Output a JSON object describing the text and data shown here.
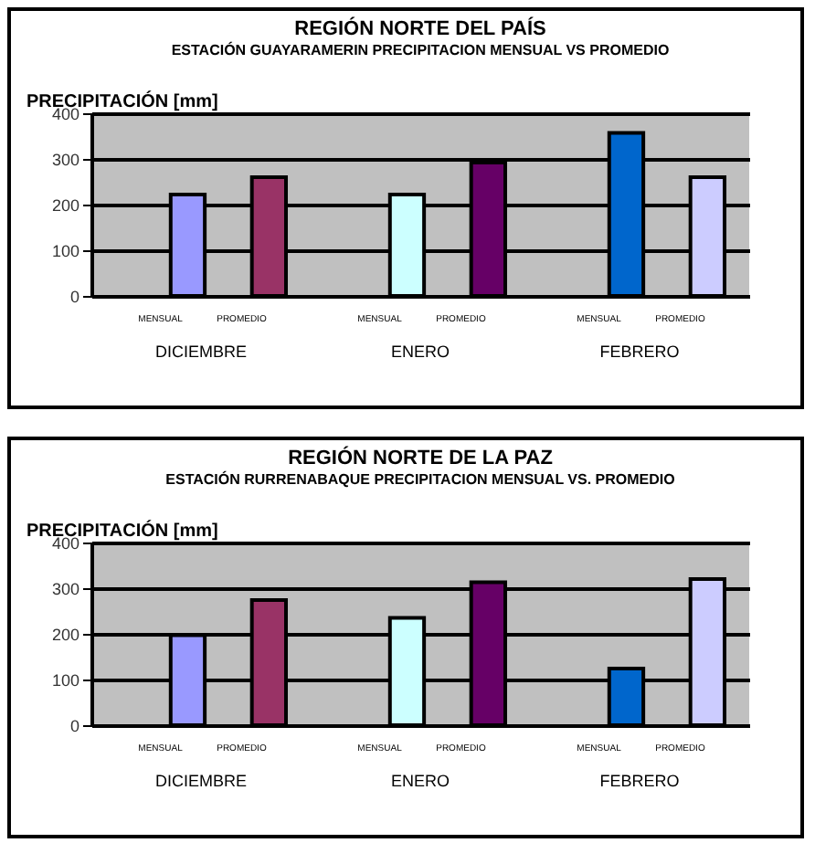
{
  "chart_data": [
    {
      "type": "bar",
      "title": "REGIÓN NORTE DEL PAÍS",
      "subtitle": "ESTACIÓN GUAYARAMERIN\nPRECIPITACION MENSUAL VS PROMEDIO",
      "ylabel": "PRECIPITACIÓN [mm]",
      "categories": [
        "MENSUAL",
        "PROMEDIO",
        "MENSUAL",
        "PROMEDIO",
        "MENSUAL",
        "PROMEDIO"
      ],
      "values": [
        222,
        260,
        222,
        292,
        357,
        260
      ],
      "colors": [
        "#9999ff",
        "#993366",
        "#ccffff",
        "#660066",
        "#0066cc",
        "#ccccff"
      ],
      "annotations": [
        "DICIEMBRE",
        "ENERO",
        "FEBRERO"
      ],
      "ylim": [
        0,
        400
      ],
      "yticks": [
        0,
        100,
        200,
        300,
        400
      ],
      "grid": "y"
    },
    {
      "type": "bar",
      "title": "REGIÓN NORTE DE LA PAZ",
      "subtitle": "ESTACIÓN RURRENABAQUE\nPRECIPITACION MENSUAL VS. PROMEDIO",
      "ylabel": "PRECIPITACIÓN [mm]",
      "categories": [
        "MENSUAL",
        "PROMEDIO",
        "MENSUAL",
        "PROMEDIO",
        "MENSUAL",
        "PROMEDIO"
      ],
      "values": [
        197,
        274,
        235,
        313,
        124,
        320
      ],
      "colors": [
        "#9999ff",
        "#993366",
        "#ccffff",
        "#660066",
        "#0066cc",
        "#ccccff"
      ],
      "annotations": [
        "DICIEMBRE",
        "ENERO",
        "FEBRERO"
      ],
      "ylim": [
        0,
        400
      ],
      "yticks": [
        0,
        100,
        200,
        300,
        400
      ],
      "grid": "y"
    }
  ]
}
